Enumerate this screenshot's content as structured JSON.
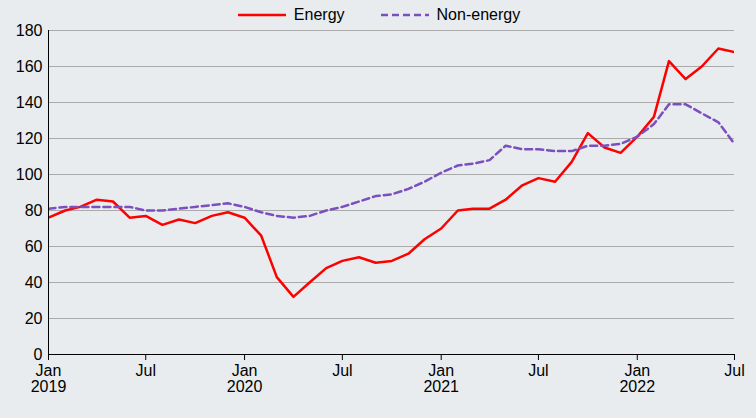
{
  "chart_data": {
    "type": "line",
    "x": [
      "2019-01",
      "2019-02",
      "2019-03",
      "2019-04",
      "2019-05",
      "2019-06",
      "2019-07",
      "2019-08",
      "2019-09",
      "2019-10",
      "2019-11",
      "2019-12",
      "2020-01",
      "2020-02",
      "2020-03",
      "2020-04",
      "2020-05",
      "2020-06",
      "2020-07",
      "2020-08",
      "2020-09",
      "2020-10",
      "2020-11",
      "2020-12",
      "2021-01",
      "2021-02",
      "2021-03",
      "2021-04",
      "2021-05",
      "2021-06",
      "2021-07",
      "2021-08",
      "2021-09",
      "2021-10",
      "2021-11",
      "2021-12",
      "2022-01",
      "2022-02",
      "2022-03",
      "2022-04",
      "2022-05",
      "2022-06",
      "2022-07"
    ],
    "series": [
      {
        "name": "Energy",
        "color": "#ff0000",
        "line_style": "solid",
        "values": [
          76,
          80,
          82,
          86,
          85,
          76,
          77,
          72,
          75,
          73,
          77,
          79,
          76,
          66,
          43,
          32,
          40,
          48,
          52,
          54,
          51,
          52,
          56,
          64,
          70,
          80,
          81,
          81,
          86,
          94,
          98,
          96,
          107,
          123,
          115,
          112,
          121,
          132,
          163,
          153,
          160,
          170,
          168
        ]
      },
      {
        "name": "Non-energy",
        "color": "#7b4fbf",
        "line_style": "dashed",
        "values": [
          81,
          82,
          82,
          82,
          82,
          82,
          80,
          80,
          81,
          82,
          83,
          84,
          82,
          79,
          77,
          76,
          77,
          80,
          82,
          85,
          88,
          89,
          92,
          96,
          101,
          105,
          106,
          108,
          116,
          114,
          114,
          113,
          113,
          116,
          116,
          117,
          121,
          128,
          139,
          139,
          134,
          129,
          117
        ]
      }
    ],
    "xlim": [
      "2019-01",
      "2022-07"
    ],
    "xticks": [
      {
        "value": "2019-01",
        "label": "Jan\n2019"
      },
      {
        "value": "2019-07",
        "label": "Jul"
      },
      {
        "value": "2020-01",
        "label": "Jan\n2020"
      },
      {
        "value": "2020-07",
        "label": "Jul"
      },
      {
        "value": "2021-01",
        "label": "Jan\n2021"
      },
      {
        "value": "2021-07",
        "label": "Jul"
      },
      {
        "value": "2022-01",
        "label": "Jan\n2022"
      },
      {
        "value": "2022-07",
        "label": "Jul"
      }
    ],
    "ylim": [
      0,
      180
    ],
    "yticks": [
      0,
      20,
      40,
      60,
      80,
      100,
      120,
      140,
      160,
      180
    ],
    "grid": true,
    "legend": "top"
  }
}
